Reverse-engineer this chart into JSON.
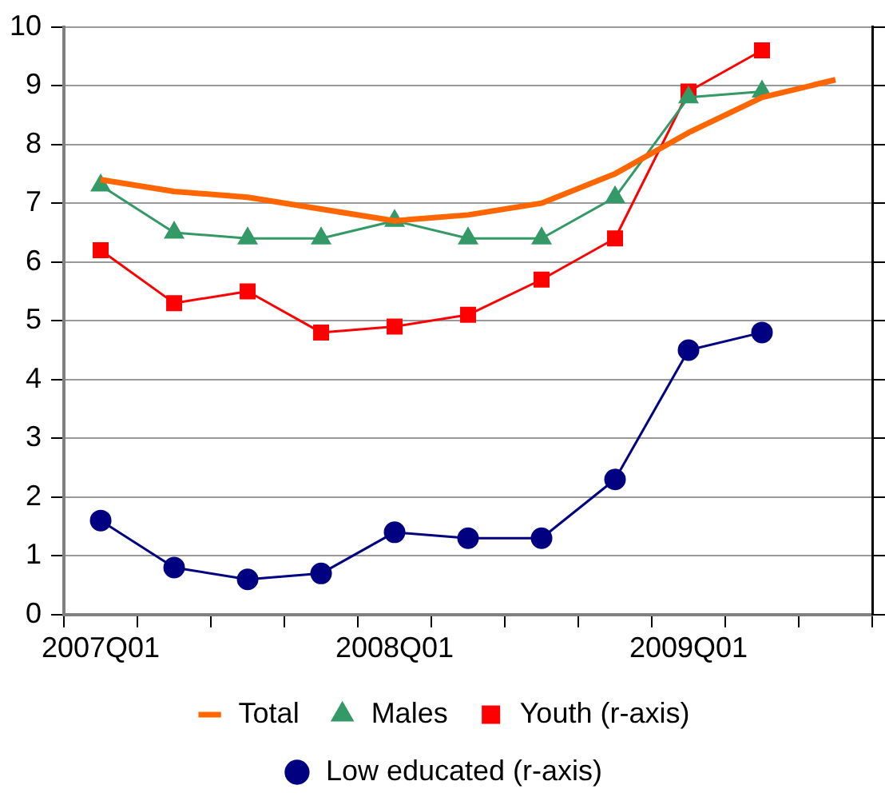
{
  "chart_data": {
    "type": "line",
    "categories": [
      "2007Q01",
      null,
      null,
      null,
      "2008Q01",
      null,
      null,
      null,
      "2009Q01",
      null,
      null
    ],
    "series": [
      {
        "name": "Total",
        "color": "#ff6600",
        "marker": "none",
        "values": [
          7.4,
          7.2,
          7.1,
          6.9,
          6.7,
          6.8,
          7.0,
          7.5,
          8.2,
          8.8,
          9.1
        ]
      },
      {
        "name": "Males",
        "color": "#339966",
        "marker": "triangle",
        "values": [
          7.3,
          6.5,
          6.4,
          6.4,
          6.7,
          6.4,
          6.4,
          7.1,
          8.8,
          8.9,
          null
        ]
      },
      {
        "name": "Youth (r-axis)",
        "color": "#ff0000",
        "marker": "square",
        "values": [
          6.2,
          5.3,
          5.5,
          4.8,
          4.9,
          5.1,
          5.7,
          6.4,
          8.9,
          9.6,
          null
        ]
      },
      {
        "name": "Low educated (r-axis)",
        "color": "#000080",
        "marker": "circle",
        "values": [
          1.6,
          0.8,
          0.6,
          0.7,
          1.4,
          1.3,
          1.3,
          2.3,
          4.5,
          4.8,
          null
        ]
      }
    ],
    "ylim": [
      0,
      10
    ],
    "yticks": [
      0,
      1,
      2,
      3,
      4,
      5,
      6,
      7,
      8,
      9,
      10
    ],
    "grid": "y",
    "legend": "bottom",
    "line_style": "solid"
  }
}
